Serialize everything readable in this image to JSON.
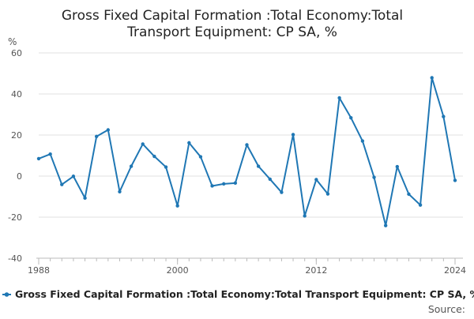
{
  "chart_data": {
    "type": "line",
    "title_lines": [
      "Gross Fixed Capital Formation :Total Economy:Total",
      "Transport Equipment: CP SA, %"
    ],
    "ylabel": "%",
    "xlabel": "",
    "ylim": [
      -40,
      60
    ],
    "xlim": [
      1988,
      2024
    ],
    "y_ticks": [
      60,
      40,
      20,
      0,
      -20,
      -40
    ],
    "x_ticks": [
      1988,
      2000,
      2012,
      2024
    ],
    "grid": "horizontal",
    "legend": "bottom",
    "series": [
      {
        "name": "Gross Fixed Capital Formation :Total Economy:Total Transport Equipment: CP SA, %",
        "color": "#1f77b4",
        "x": [
          1988,
          1989,
          1990,
          1991,
          1992,
          1993,
          1994,
          1995,
          1996,
          1997,
          1998,
          1999,
          2000,
          2001,
          2002,
          2003,
          2004,
          2005,
          2006,
          2007,
          2008,
          2009,
          2010,
          2011,
          2012,
          2013,
          2014,
          2015,
          2016,
          2017,
          2018,
          2019,
          2020,
          2021,
          2022,
          2023,
          2024
        ],
        "y": [
          8.5,
          10.7,
          -4.1,
          -0.1,
          -10.7,
          19.3,
          22.5,
          -7.6,
          4.8,
          15.6,
          9.6,
          4.4,
          -14.5,
          16.2,
          9.4,
          -4.8,
          -3.8,
          -3.4,
          15.2,
          4.8,
          -1.5,
          -7.9,
          20.2,
          -19.4,
          -1.7,
          -8.7,
          38.1,
          28.4,
          17.1,
          -0.6,
          -24.1,
          4.6,
          -8.8,
          -14.1,
          47.9,
          29.0,
          -2.1
        ]
      }
    ]
  },
  "source_label": "Source:",
  "colors": {
    "series": "#1f77b4",
    "grid": "#e0e0e0",
    "axis": "#bbbbbb",
    "text": "#222222",
    "tick_text": "#555555"
  }
}
